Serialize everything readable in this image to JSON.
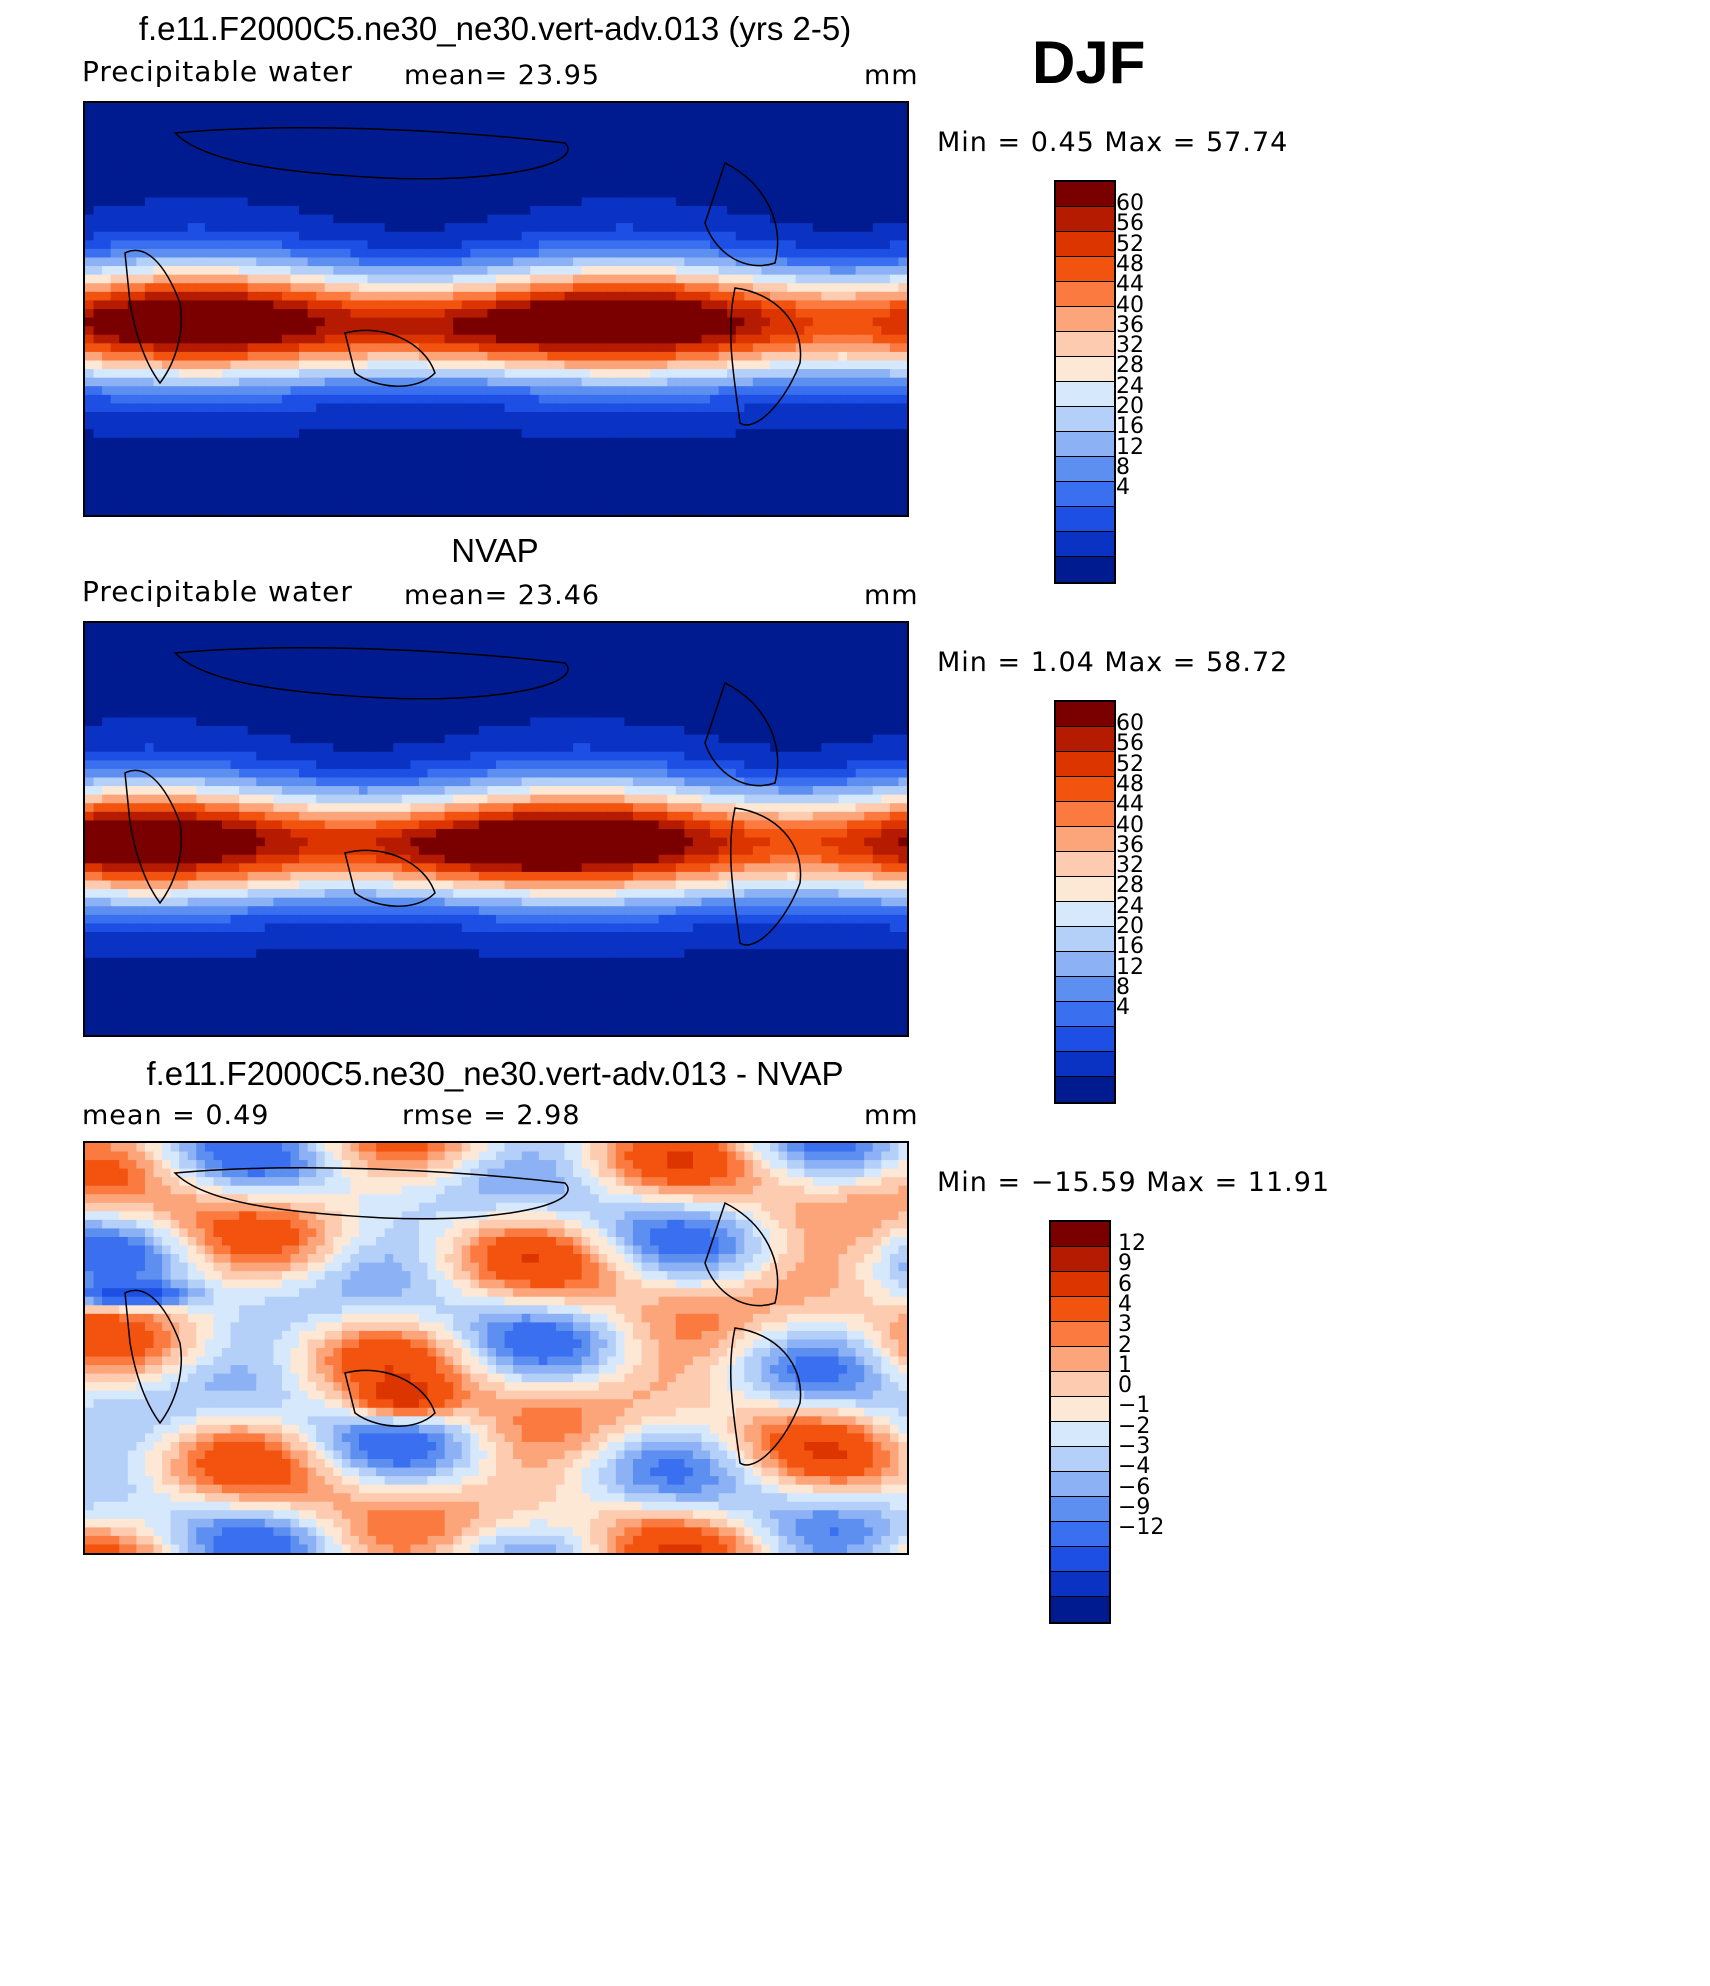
{
  "season": "DJF",
  "panels": [
    {
      "title": "f.e11.F2000C5.ne30_ne30.vert-adv.013 (yrs 2-5)",
      "left_label": "Precipitable  water",
      "mid_label": "mean=   23.95",
      "right_label": "mm",
      "minmax": "Min  =     0.45  Max  =    57.74",
      "kind": "abs"
    },
    {
      "title": "NVAP",
      "left_label": "Precipitable  water",
      "mid_label": "mean=   23.46",
      "right_label": "mm",
      "minmax": "Min  =     1.04  Max  =    58.72",
      "kind": "abs"
    },
    {
      "title": "f.e11.F2000C5.ne30_ne30.vert-adv.013 - NVAP",
      "left_label": "mean  =      0.49",
      "mid_label": "rmse  =      2.98",
      "right_label": "mm",
      "minmax": "Min  =  −15.59  Max  =    11.91",
      "kind": "diff"
    }
  ],
  "chart_data": [
    {
      "type": "heatmap",
      "title": "f.e11.F2000C5.ne30_ne30.vert-adv.013 (yrs 2-5)",
      "variable": "Precipitable water",
      "units": "mm",
      "mean": 23.95,
      "min": 0.45,
      "max": 57.74,
      "levels": [
        4,
        8,
        12,
        16,
        20,
        24,
        28,
        32,
        36,
        40,
        44,
        48,
        52,
        56,
        60
      ]
    },
    {
      "type": "heatmap",
      "title": "NVAP",
      "variable": "Precipitable water",
      "units": "mm",
      "mean": 23.46,
      "min": 1.04,
      "max": 58.72,
      "levels": [
        4,
        8,
        12,
        16,
        20,
        24,
        28,
        32,
        36,
        40,
        44,
        48,
        52,
        56,
        60
      ]
    },
    {
      "type": "heatmap",
      "title": "f.e11.F2000C5.ne30_ne30.vert-adv.013 - NVAP",
      "units": "mm",
      "mean": 0.49,
      "rmse": 2.98,
      "min": -15.59,
      "max": 11.91,
      "levels": [
        -12,
        -9,
        -6,
        -4,
        -3,
        -2,
        -1,
        0,
        1,
        2,
        3,
        4,
        6,
        9,
        12
      ]
    }
  ],
  "colorbars": {
    "abs_labels": [
      "60",
      "56",
      "52",
      "48",
      "44",
      "40",
      "36",
      "32",
      "28",
      "24",
      "20",
      "16",
      "12",
      "8",
      "4"
    ],
    "diff_labels": [
      "12",
      "9",
      "6",
      "4",
      "3",
      "2",
      "1",
      "0",
      "−1",
      "−2",
      "−3",
      "−4",
      "−6",
      "−9",
      "−12"
    ],
    "colors": [
      "#7a0000",
      "#b51b00",
      "#dc3500",
      "#f2530f",
      "#fa7a3f",
      "#fca47a",
      "#fdcbb0",
      "#fde8d6",
      "#d6e8fb",
      "#b4cff8",
      "#8cb1f4",
      "#5d8ff0",
      "#3a6ff0",
      "#1d4fe4",
      "#0a33c4",
      "#001a8f"
    ]
  }
}
